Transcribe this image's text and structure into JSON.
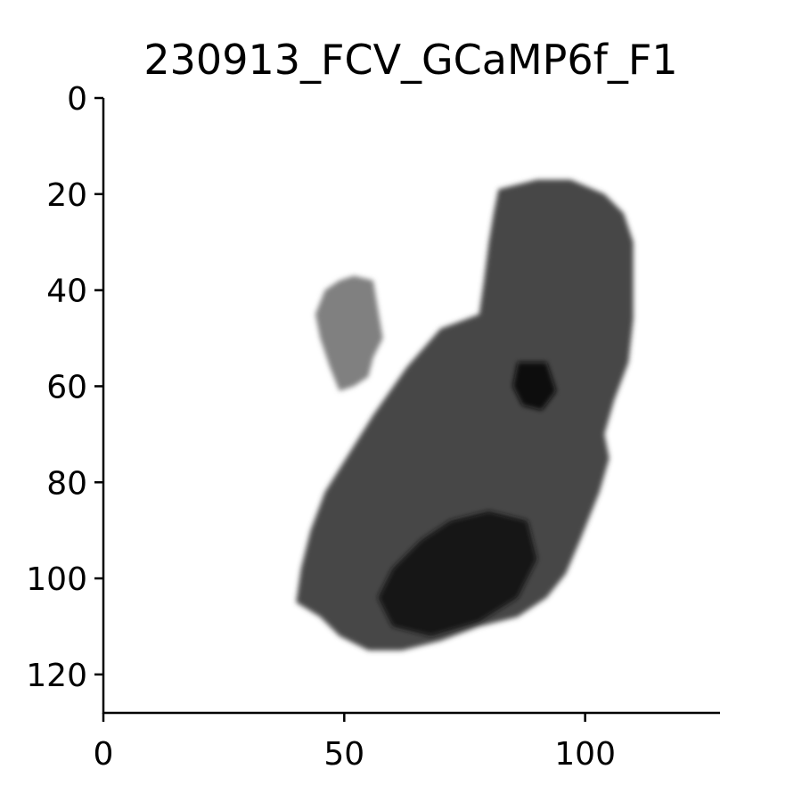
{
  "chart_data": {
    "type": "heatmap",
    "title": "230913_FCV_GCaMP6f_F1",
    "xlabel": "",
    "ylabel": "",
    "xlim": [
      0,
      128
    ],
    "ylim": [
      128,
      0
    ],
    "y_inverted": true,
    "grid": false,
    "legend": "none",
    "colormap": "gray_r",
    "x_ticks": [
      0,
      50,
      100
    ],
    "y_ticks": [
      0,
      20,
      40,
      60,
      80,
      100,
      120
    ],
    "regions": [
      {
        "label": "small",
        "intensity": 0.5,
        "outline": [
          [
            52,
            37
          ],
          [
            56,
            38
          ],
          [
            57,
            44
          ],
          [
            58,
            50
          ],
          [
            56,
            54
          ],
          [
            55,
            58
          ],
          [
            52,
            60
          ],
          [
            49,
            61
          ],
          [
            47,
            56
          ],
          [
            45,
            50
          ],
          [
            44,
            45
          ],
          [
            46,
            40
          ],
          [
            49,
            38
          ]
        ]
      },
      {
        "label": "large",
        "intensity": 0.72,
        "outline": [
          [
            82,
            19
          ],
          [
            90,
            17
          ],
          [
            97,
            17
          ],
          [
            104,
            20
          ],
          [
            108,
            24
          ],
          [
            110,
            30
          ],
          [
            110,
            38
          ],
          [
            110,
            46
          ],
          [
            109,
            55
          ],
          [
            106,
            63
          ],
          [
            104,
            70
          ],
          [
            105,
            75
          ],
          [
            103,
            82
          ],
          [
            99,
            92
          ],
          [
            96,
            99
          ],
          [
            92,
            104
          ],
          [
            86,
            108
          ],
          [
            78,
            110
          ],
          [
            70,
            113
          ],
          [
            62,
            115
          ],
          [
            55,
            115
          ],
          [
            49,
            112
          ],
          [
            45,
            108
          ],
          [
            40,
            105
          ],
          [
            41,
            98
          ],
          [
            43,
            90
          ],
          [
            46,
            82
          ],
          [
            51,
            74
          ],
          [
            56,
            66
          ],
          [
            63,
            56
          ],
          [
            70,
            48
          ],
          [
            78,
            45
          ],
          [
            79,
            38
          ],
          [
            80,
            30
          ],
          [
            81,
            24
          ]
        ]
      },
      {
        "label": "dark-core",
        "intensity": 0.92,
        "outline": [
          [
            60,
            98
          ],
          [
            66,
            92
          ],
          [
            72,
            88
          ],
          [
            80,
            86
          ],
          [
            88,
            88
          ],
          [
            90,
            96
          ],
          [
            86,
            104
          ],
          [
            78,
            109
          ],
          [
            68,
            112
          ],
          [
            60,
            110
          ],
          [
            57,
            104
          ]
        ]
      },
      {
        "label": "dark-spot",
        "intensity": 0.95,
        "outline": [
          [
            86,
            55
          ],
          [
            92,
            55
          ],
          [
            94,
            61
          ],
          [
            91,
            65
          ],
          [
            87,
            64
          ],
          [
            85,
            60
          ]
        ]
      }
    ]
  }
}
